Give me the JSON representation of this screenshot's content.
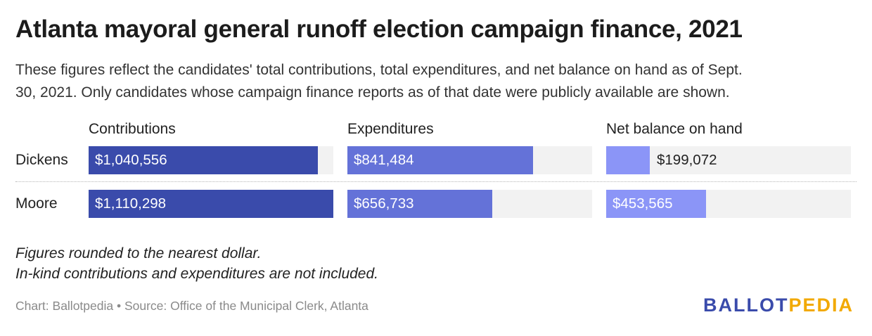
{
  "title": "Atlanta mayoral general runoff election campaign finance, 2021",
  "subtitle_line1": "These figures reflect the candidates' total contributions, total expenditures, and net balance on hand as of Sept.",
  "subtitle_line2": "30, 2021. Only candidates whose campaign finance reports as of that date were publicly available are shown.",
  "notes": [
    "Figures rounded to the nearest dollar.",
    "In-kind contributions and expenditures are not included."
  ],
  "source": "Chart: Ballotpedia • Source: Office of the Municipal Clerk, Atlanta",
  "logo": {
    "part1": "BALLOT",
    "part2": "PEDIA"
  },
  "colors": {
    "contributions": "#3a4bab",
    "expenditures": "#6472d8",
    "net_balance": "#8b95f7",
    "track": "#f2f2f2",
    "logo_blue": "#3a4bab",
    "logo_gold": "#f2a900"
  },
  "chart_data": {
    "type": "bar",
    "orientation": "horizontal",
    "categories": [
      "Dickens",
      "Moore"
    ],
    "columns": [
      "Contributions",
      "Expenditures",
      "Net balance on hand"
    ],
    "series": [
      {
        "name": "Contributions",
        "values": [
          1040556,
          1110298
        ],
        "labels": [
          "$1,040,556",
          "$1,110,298"
        ]
      },
      {
        "name": "Expenditures",
        "values": [
          841484,
          656733
        ],
        "labels": [
          "$841,484",
          "$656,733"
        ]
      },
      {
        "name": "Net balance on hand",
        "values": [
          199072,
          453565
        ],
        "labels": [
          "$199,072",
          "$453,565"
        ]
      }
    ],
    "xlim": [
      0,
      1110298
    ]
  }
}
